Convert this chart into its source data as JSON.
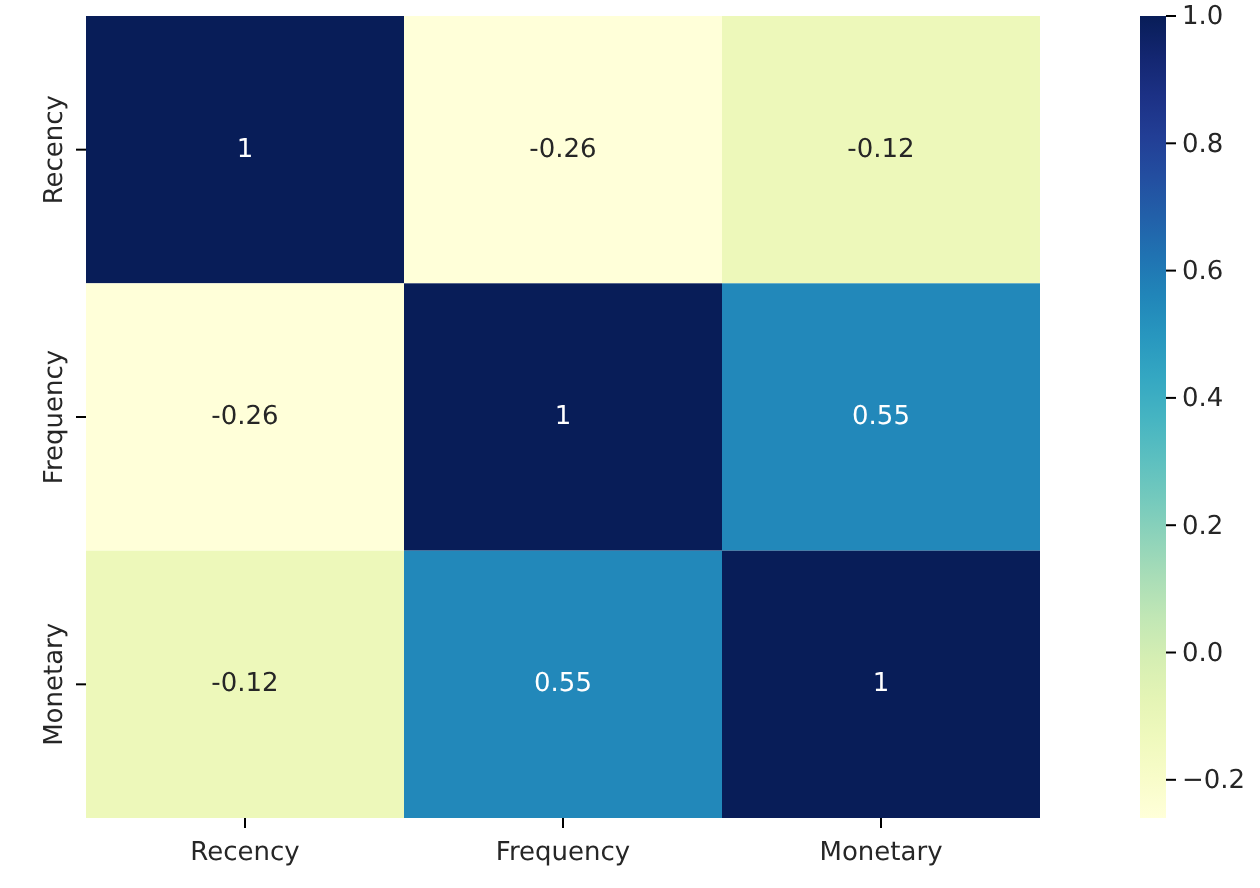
{
  "chart_data": {
    "type": "heatmap",
    "categories": [
      "Recency",
      "Frequency",
      "Monetary"
    ],
    "y_categories": [
      "Recency",
      "Frequency",
      "Monetary"
    ],
    "cells": [
      [
        1,
        -0.26,
        -0.12
      ],
      [
        -0.26,
        1,
        0.55
      ],
      [
        -0.12,
        0.55,
        1
      ]
    ],
    "clim": [
      -0.26,
      1
    ],
    "cticks": [
      {
        "value": -0.2,
        "label": "−0.2"
      },
      {
        "value": 0,
        "label": "0.0"
      },
      {
        "value": 0.2,
        "label": "0.2"
      },
      {
        "value": 0.4,
        "label": "0.4"
      },
      {
        "value": 0.6,
        "label": "0.6"
      },
      {
        "value": 0.8,
        "label": "0.8"
      },
      {
        "value": 1,
        "label": "1.0"
      }
    ],
    "data_labels": true
  }
}
